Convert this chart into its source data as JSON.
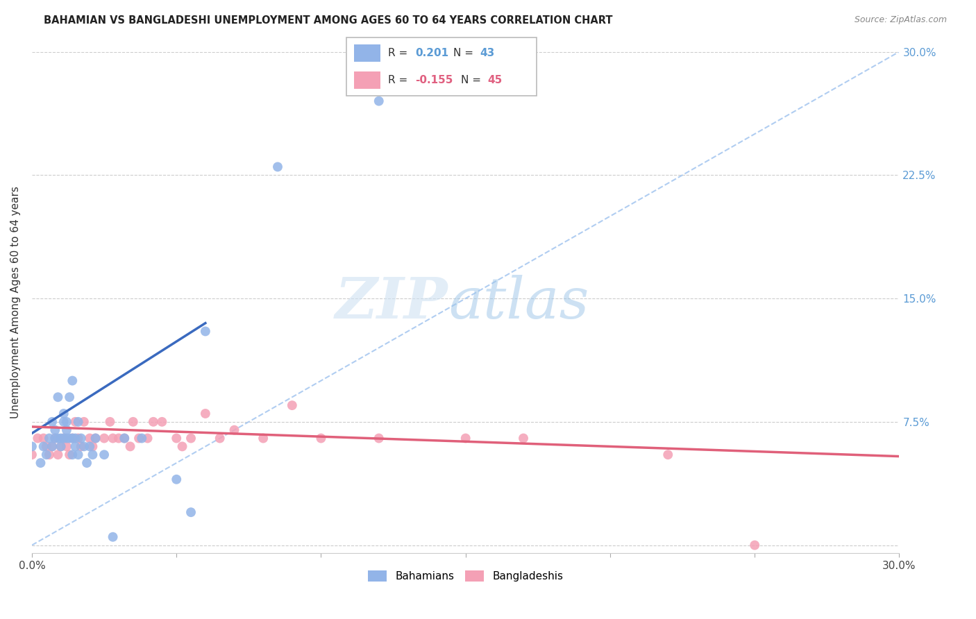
{
  "title": "BAHAMIAN VS BANGLADESHI UNEMPLOYMENT AMONG AGES 60 TO 64 YEARS CORRELATION CHART",
  "source": "Source: ZipAtlas.com",
  "ylabel": "Unemployment Among Ages 60 to 64 years",
  "xlim": [
    0.0,
    0.3
  ],
  "ylim": [
    -0.005,
    0.3
  ],
  "bahamian_color": "#92b4e8",
  "bangladeshi_color": "#f4a0b5",
  "bahamian_line_color": "#3a6abf",
  "bangladeshi_line_color": "#e0607a",
  "dashed_line_color": "#a8c8f0",
  "background_color": "#ffffff",
  "bahamian_x": [
    0.0,
    0.003,
    0.004,
    0.005,
    0.006,
    0.007,
    0.007,
    0.008,
    0.008,
    0.009,
    0.009,
    0.01,
    0.01,
    0.011,
    0.011,
    0.011,
    0.012,
    0.012,
    0.012,
    0.013,
    0.013,
    0.014,
    0.014,
    0.014,
    0.015,
    0.015,
    0.016,
    0.016,
    0.017,
    0.018,
    0.019,
    0.02,
    0.021,
    0.022,
    0.025,
    0.028,
    0.032,
    0.038,
    0.05,
    0.055,
    0.06,
    0.085,
    0.12
  ],
  "bahamian_y": [
    0.06,
    0.05,
    0.06,
    0.055,
    0.065,
    0.06,
    0.075,
    0.065,
    0.07,
    0.065,
    0.09,
    0.06,
    0.065,
    0.065,
    0.075,
    0.08,
    0.065,
    0.07,
    0.075,
    0.065,
    0.09,
    0.055,
    0.065,
    0.1,
    0.06,
    0.065,
    0.055,
    0.075,
    0.065,
    0.06,
    0.05,
    0.06,
    0.055,
    0.065,
    0.055,
    0.005,
    0.065,
    0.065,
    0.04,
    0.02,
    0.13,
    0.23,
    0.27
  ],
  "bangladeshi_x": [
    0.0,
    0.002,
    0.004,
    0.005,
    0.006,
    0.007,
    0.008,
    0.009,
    0.01,
    0.011,
    0.012,
    0.013,
    0.014,
    0.015,
    0.016,
    0.017,
    0.018,
    0.02,
    0.021,
    0.022,
    0.025,
    0.027,
    0.028,
    0.03,
    0.032,
    0.034,
    0.035,
    0.037,
    0.04,
    0.042,
    0.045,
    0.05,
    0.052,
    0.055,
    0.06,
    0.065,
    0.07,
    0.08,
    0.09,
    0.1,
    0.12,
    0.15,
    0.17,
    0.22,
    0.25
  ],
  "bangladeshi_y": [
    0.055,
    0.065,
    0.065,
    0.06,
    0.055,
    0.06,
    0.065,
    0.055,
    0.06,
    0.065,
    0.06,
    0.055,
    0.065,
    0.075,
    0.065,
    0.06,
    0.075,
    0.065,
    0.06,
    0.065,
    0.065,
    0.075,
    0.065,
    0.065,
    0.065,
    0.06,
    0.075,
    0.065,
    0.065,
    0.075,
    0.075,
    0.065,
    0.06,
    0.065,
    0.08,
    0.065,
    0.07,
    0.065,
    0.085,
    0.065,
    0.065,
    0.065,
    0.065,
    0.055,
    0.0
  ],
  "bahamian_line_x": [
    0.0,
    0.06
  ],
  "bahamian_line_y": [
    0.068,
    0.135
  ],
  "bangladeshi_line_x": [
    0.0,
    0.3
  ],
  "bangladeshi_line_y": [
    0.072,
    0.054
  ],
  "diag_line_x": [
    0.0,
    0.3
  ],
  "diag_line_y": [
    0.0,
    0.3
  ],
  "legend_items": [
    {
      "label": "R =  0.201   N = 43",
      "color": "#92b4e8"
    },
    {
      "label": "R = -0.155   N = 45",
      "color": "#f4a0b5"
    }
  ],
  "bottom_legend": [
    {
      "label": "Bahamians",
      "color": "#92b4e8"
    },
    {
      "label": "Bangladeshis",
      "color": "#f4a0b5"
    }
  ],
  "ytick_positions": [
    0.075,
    0.15,
    0.225,
    0.3
  ],
  "ytick_labels": [
    "7.5%",
    "15.0%",
    "22.5%",
    "30.0%"
  ],
  "xtick_positions": [
    0.0,
    0.05,
    0.1,
    0.15,
    0.2,
    0.25,
    0.3
  ],
  "xtick_labels": [
    "0.0%",
    "",
    "",
    "",
    "",
    "",
    "30.0%"
  ]
}
